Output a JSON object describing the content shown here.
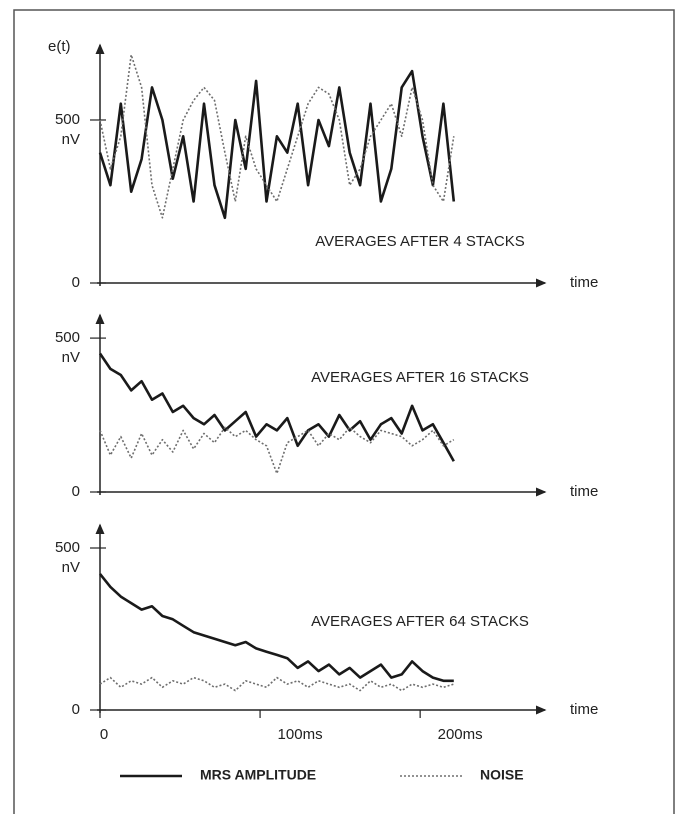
{
  "chart_data": [
    {
      "type": "line",
      "title": "AVERAGES  AFTER 4 STACKS",
      "yaxis_title": "e(t)",
      "ylabel": "nV",
      "xlabel": "time",
      "x": [
        0,
        6.5,
        13,
        19.5,
        26,
        32.5,
        39,
        45.5,
        52,
        58.5,
        65,
        71.5,
        78,
        84.5,
        91,
        97.5,
        104,
        110.5,
        117,
        123.5,
        130,
        136.5,
        143,
        149.5,
        156,
        162.5,
        169,
        175.5,
        182,
        188.5,
        195,
        201.5,
        208,
        214.5,
        221
      ],
      "xlim": [
        0,
        278
      ],
      "ylim": [
        0,
        730
      ],
      "yticks": [
        0,
        500
      ],
      "series": [
        {
          "name": "MRS AMPLITUDE",
          "color": "#1a1a1a",
          "values": [
            400,
            300,
            550,
            280,
            380,
            600,
            500,
            320,
            450,
            250,
            550,
            300,
            200,
            500,
            350,
            620,
            250,
            450,
            400,
            550,
            300,
            500,
            420,
            600,
            400,
            300,
            550,
            250,
            350,
            600,
            650,
            450,
            300,
            550,
            250
          ]
        },
        {
          "name": "NOISE",
          "color": "#6e6e6e",
          "values": [
            500,
            350,
            450,
            700,
            600,
            300,
            200,
            350,
            500,
            560,
            600,
            560,
            400,
            250,
            450,
            350,
            300,
            250,
            350,
            450,
            550,
            600,
            580,
            500,
            300,
            350,
            450,
            500,
            550,
            450,
            600,
            500,
            300,
            250,
            450
          ]
        }
      ]
    },
    {
      "type": "line",
      "title": "AVERAGES AFTER 16 STACKS",
      "ylabel": "nV",
      "xlabel": "time",
      "x": [
        0,
        6.5,
        13,
        19.5,
        26,
        32.5,
        39,
        45.5,
        52,
        58.5,
        65,
        71.5,
        78,
        84.5,
        91,
        97.5,
        104,
        110.5,
        117,
        123.5,
        130,
        136.5,
        143,
        149.5,
        156,
        162.5,
        169,
        175.5,
        182,
        188.5,
        195,
        201.5,
        208,
        214.5,
        221
      ],
      "xlim": [
        0,
        278
      ],
      "ylim": [
        0,
        575
      ],
      "yticks": [
        0,
        500
      ],
      "series": [
        {
          "color": "#1a1a1a",
          "values": [
            450,
            400,
            380,
            330,
            360,
            300,
            320,
            260,
            280,
            240,
            220,
            250,
            200,
            230,
            260,
            180,
            220,
            200,
            240,
            150,
            200,
            220,
            180,
            250,
            200,
            230,
            170,
            220,
            240,
            190,
            280,
            200,
            220,
            160,
            100
          ]
        },
        {
          "color": "#6e6e6e",
          "values": [
            200,
            120,
            180,
            110,
            190,
            120,
            170,
            130,
            200,
            140,
            190,
            160,
            210,
            180,
            200,
            170,
            150,
            60,
            160,
            180,
            200,
            150,
            190,
            170,
            210,
            180,
            160,
            200,
            190,
            180,
            150,
            170,
            200,
            150,
            170
          ]
        }
      ]
    },
    {
      "type": "line",
      "title": "AVERAGES AFTER 64 STACKS",
      "ylabel": "nV",
      "xlabel": "time",
      "x": [
        0,
        6.5,
        13,
        19.5,
        26,
        32.5,
        39,
        45.5,
        52,
        58.5,
        65,
        71.5,
        78,
        84.5,
        91,
        97.5,
        104,
        110.5,
        117,
        123.5,
        130,
        136.5,
        143,
        149.5,
        156,
        162.5,
        169,
        175.5,
        182,
        188.5,
        195,
        201.5,
        208,
        214.5,
        221
      ],
      "xlim": [
        0,
        278
      ],
      "ylim": [
        0,
        571
      ],
      "yticks": [
        0,
        500
      ],
      "xticks": [
        0,
        {
          "value": 100,
          "label": "100ms"
        },
        {
          "value": 200,
          "label": "200ms"
        }
      ],
      "series": [
        {
          "color": "#1a1a1a",
          "values": [
            420,
            380,
            350,
            330,
            310,
            320,
            290,
            280,
            260,
            240,
            230,
            220,
            210,
            200,
            210,
            190,
            180,
            170,
            160,
            130,
            150,
            120,
            140,
            110,
            130,
            100,
            120,
            140,
            100,
            110,
            150,
            120,
            100,
            90,
            90
          ]
        },
        {
          "color": "#6e6e6e",
          "values": [
            80,
            100,
            70,
            90,
            80,
            100,
            70,
            90,
            80,
            100,
            90,
            70,
            80,
            60,
            90,
            80,
            70,
            100,
            80,
            90,
            70,
            90,
            80,
            70,
            80,
            60,
            90,
            70,
            80,
            60,
            80,
            70,
            80,
            70,
            80
          ]
        }
      ]
    }
  ]
}
